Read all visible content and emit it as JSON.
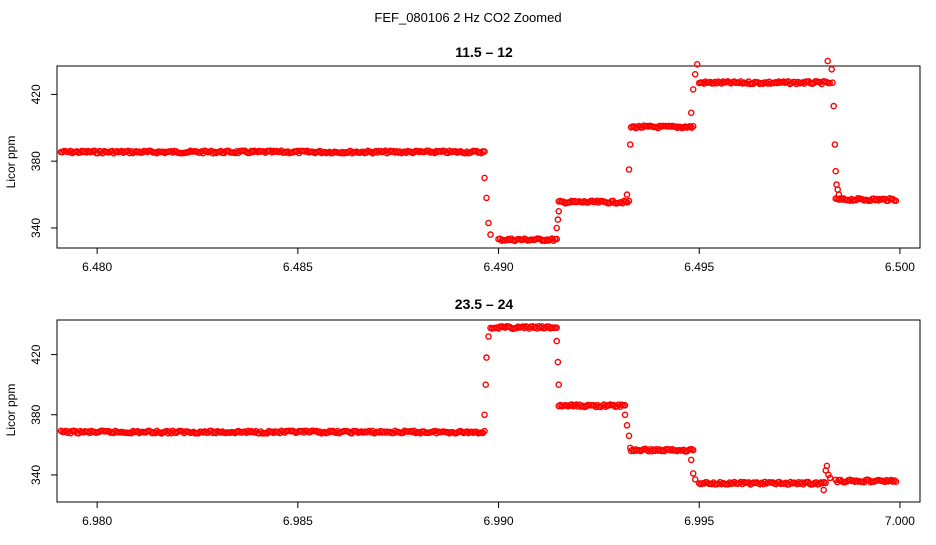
{
  "figure": {
    "suptitle": "FEF_080106  2 Hz CO2 Zoomed"
  },
  "colors": {
    "points": "#ff0000",
    "axes": "#000000",
    "background": "#ffffff"
  },
  "chart_data": [
    {
      "type": "scatter",
      "title": "11.5 – 12",
      "xlabel": "",
      "ylabel": "Licor ppm",
      "xlim": [
        6.479,
        6.5005
      ],
      "ylim": [
        328,
        437
      ],
      "xticks": [
        6.48,
        6.485,
        6.49,
        6.495,
        6.5
      ],
      "xtick_labels": [
        "6.480",
        "6.485",
        "6.490",
        "6.495",
        "6.500"
      ],
      "yticks": [
        340,
        380,
        420
      ],
      "ytick_labels": [
        "340",
        "380",
        "420"
      ],
      "grid": false,
      "marker": "open-circle",
      "series": [
        {
          "color": "#ff0000",
          "segments": [
            {
              "x_start": 6.4791,
              "x_end": 6.48965,
              "y": 385.5
            },
            {
              "x_start": 6.49,
              "x_end": 6.49145,
              "y": 333.0
            },
            {
              "x_start": 6.4915,
              "x_end": 6.49325,
              "y": 355.5
            },
            {
              "x_start": 6.4933,
              "x_end": 6.49485,
              "y": 400.5
            },
            {
              "x_start": 6.495,
              "x_end": 6.49825,
              "y": 427.0
            },
            {
              "x_start": 6.4984,
              "x_end": 6.4999,
              "y": 357.0
            }
          ],
          "transition_points": [
            {
              "x": 6.48965,
              "y": 370
            },
            {
              "x": 6.4897,
              "y": 358
            },
            {
              "x": 6.48975,
              "y": 343
            },
            {
              "x": 6.4898,
              "y": 336
            },
            {
              "x": 6.49145,
              "y": 340
            },
            {
              "x": 6.49148,
              "y": 345
            },
            {
              "x": 6.4915,
              "y": 350
            },
            {
              "x": 6.4932,
              "y": 360
            },
            {
              "x": 6.49325,
              "y": 375
            },
            {
              "x": 6.49328,
              "y": 390
            },
            {
              "x": 6.4948,
              "y": 409
            },
            {
              "x": 6.49485,
              "y": 423
            },
            {
              "x": 6.4949,
              "y": 432
            },
            {
              "x": 6.49495,
              "y": 438
            },
            {
              "x": 6.4982,
              "y": 440
            },
            {
              "x": 6.4983,
              "y": 435
            },
            {
              "x": 6.49832,
              "y": 427
            },
            {
              "x": 6.49835,
              "y": 413
            },
            {
              "x": 6.49838,
              "y": 390
            },
            {
              "x": 6.4984,
              "y": 374
            },
            {
              "x": 6.49842,
              "y": 366
            },
            {
              "x": 6.49845,
              "y": 363
            },
            {
              "x": 6.49848,
              "y": 360
            }
          ]
        }
      ]
    },
    {
      "type": "scatter",
      "title": "23.5 – 24",
      "xlabel": "",
      "ylabel": "Licor ppm",
      "xlim": [
        6.979,
        7.0005
      ],
      "ylim": [
        322,
        443
      ],
      "xticks": [
        6.98,
        6.985,
        6.99,
        6.995,
        7.0
      ],
      "xtick_labels": [
        "6.980",
        "6.985",
        "6.990",
        "6.995",
        "7.000"
      ],
      "yticks": [
        340,
        380,
        420
      ],
      "ytick_labels": [
        "340",
        "380",
        "420"
      ],
      "grid": false,
      "marker": "open-circle",
      "series": [
        {
          "color": "#ff0000",
          "segments": [
            {
              "x_start": 6.9791,
              "x_end": 6.98965,
              "y": 368.5
            },
            {
              "x_start": 6.9898,
              "x_end": 6.99145,
              "y": 438.0
            },
            {
              "x_start": 6.9915,
              "x_end": 6.99315,
              "y": 386.0
            },
            {
              "x_start": 6.9933,
              "x_end": 6.99485,
              "y": 356.5
            },
            {
              "x_start": 6.995,
              "x_end": 6.99815,
              "y": 334.5
            },
            {
              "x_start": 6.9984,
              "x_end": 6.9999,
              "y": 336.0
            }
          ],
          "transition_points": [
            {
              "x": 6.98965,
              "y": 380
            },
            {
              "x": 6.98968,
              "y": 400
            },
            {
              "x": 6.9897,
              "y": 418
            },
            {
              "x": 6.98975,
              "y": 432
            },
            {
              "x": 6.99145,
              "y": 429
            },
            {
              "x": 6.99148,
              "y": 415
            },
            {
              "x": 6.9915,
              "y": 400
            },
            {
              "x": 6.99315,
              "y": 380
            },
            {
              "x": 6.9932,
              "y": 373
            },
            {
              "x": 6.99325,
              "y": 366
            },
            {
              "x": 6.99328,
              "y": 358
            },
            {
              "x": 6.9948,
              "y": 350
            },
            {
              "x": 6.99485,
              "y": 341
            },
            {
              "x": 6.9949,
              "y": 337
            },
            {
              "x": 6.9981,
              "y": 330
            },
            {
              "x": 6.99815,
              "y": 343
            },
            {
              "x": 6.99818,
              "y": 346
            },
            {
              "x": 6.99822,
              "y": 340
            },
            {
              "x": 6.99826,
              "y": 338
            }
          ]
        }
      ]
    }
  ]
}
